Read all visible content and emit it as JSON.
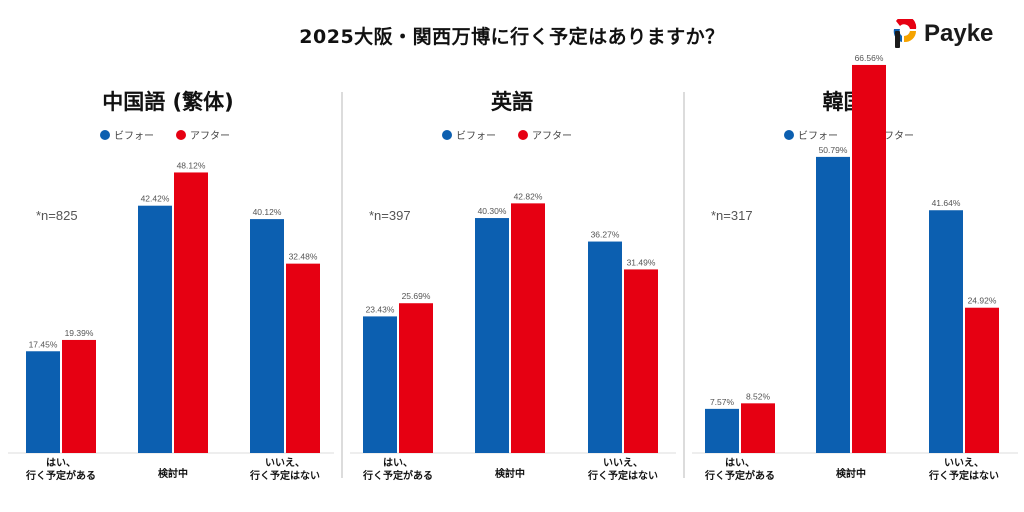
{
  "title": "2025大阪・関西万博に行く予定はありますか？",
  "brand": "Payke",
  "colors": {
    "before": "#0c5fb0",
    "after": "#e60012"
  },
  "legend": {
    "before": "ビフォー",
    "after": "アフター"
  },
  "chart_data": [
    {
      "type": "bar",
      "title": "中国語 (繁体)",
      "note": "*n=825",
      "categories": [
        [
          "はい、",
          "行く予定がある"
        ],
        [
          "検討中"
        ],
        [
          "いいえ、",
          "行く予定はない"
        ]
      ],
      "series": [
        {
          "name": "ビフォー",
          "values": [
            17.45,
            42.42,
            40.12
          ],
          "labels": [
            "17.45%",
            "42.42%",
            "40.12%"
          ]
        },
        {
          "name": "アフター",
          "values": [
            19.39,
            48.12,
            32.48
          ],
          "labels": [
            "19.39%",
            "48.12%",
            "32.48%"
          ]
        }
      ]
    },
    {
      "type": "bar",
      "title": "英語",
      "note": "*n=397",
      "categories": [
        [
          "はい、",
          "行く予定がある"
        ],
        [
          "検討中"
        ],
        [
          "いいえ、",
          "行く予定はない"
        ]
      ],
      "series": [
        {
          "name": "ビフォー",
          "values": [
            23.43,
            40.3,
            36.27
          ],
          "labels": [
            "23.43%",
            "40.30%",
            "36.27%"
          ]
        },
        {
          "name": "アフター",
          "values": [
            25.69,
            42.82,
            31.49
          ],
          "labels": [
            "25.69%",
            "42.82%",
            "31.49%"
          ]
        }
      ]
    },
    {
      "type": "bar",
      "title": "韓国語",
      "note": "*n=317",
      "categories": [
        [
          "はい、",
          "行く予定がある"
        ],
        [
          "検討中"
        ],
        [
          "いいえ、",
          "行く予定はない"
        ]
      ],
      "series": [
        {
          "name": "ビフォー",
          "values": [
            7.57,
            50.79,
            41.64
          ],
          "labels": [
            "7.57%",
            "50.79%",
            "41.64%"
          ]
        },
        {
          "name": "アフター",
          "values": [
            8.52,
            66.56,
            24.92
          ],
          "labels": [
            "8.52%",
            "66.56%",
            "24.92%"
          ]
        }
      ]
    }
  ]
}
